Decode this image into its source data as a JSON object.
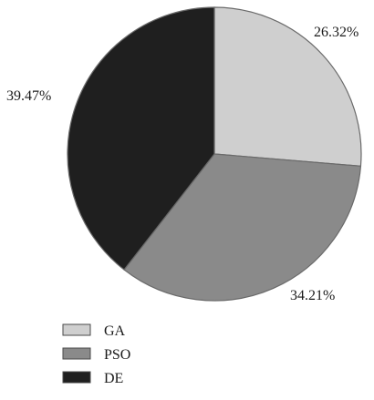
{
  "chart_data": {
    "type": "pie",
    "slices": [
      {
        "label": "GA",
        "value": 26.32,
        "value_label": "26.32%",
        "color": "#cfcfcf"
      },
      {
        "label": "PSO",
        "value": 34.21,
        "value_label": "34.21%",
        "color": "#8a8a8a"
      },
      {
        "label": "DE",
        "value": 39.47,
        "value_label": "39.47%",
        "color": "#1f1f1f"
      }
    ],
    "start_angle_deg": 0,
    "direction": "clockwise",
    "legend_placement": "bottom-left"
  }
}
